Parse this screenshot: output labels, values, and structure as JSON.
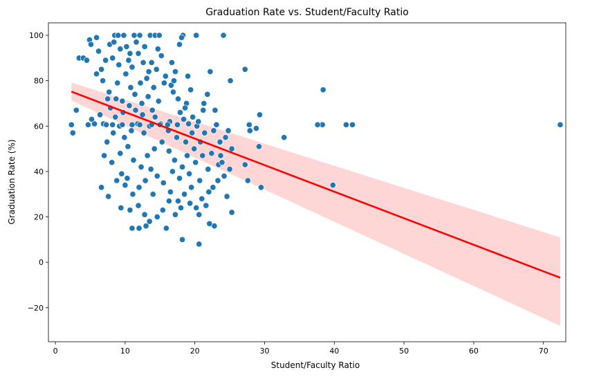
{
  "chart_data": {
    "type": "scatter",
    "title": "Graduation Rate vs. Student/Faculty Ratio",
    "xlabel": "Student/Faculty Ratio",
    "ylabel": "Graduation Rate (%)",
    "xlim": [
      -1,
      73.2
    ],
    "ylim": [
      -35,
      105.5
    ],
    "xticks": [
      0,
      10,
      20,
      30,
      40,
      50,
      60,
      70
    ],
    "yticks": [
      -20,
      0,
      20,
      40,
      60,
      80,
      100
    ],
    "grid": false,
    "point_color": "#1f77b4",
    "regression": {
      "color": "#ff0000",
      "ci_color": "#ffcccc",
      "x": [
        2.3,
        72.4
      ],
      "y": [
        75.2,
        -6.8
      ],
      "ci_lower": [
        71.2,
        -28
      ],
      "ci_upper": [
        79.2,
        11
      ]
    },
    "points": [
      [
        72.4,
        60.6
      ],
      [
        42.6,
        60.6
      ],
      [
        41.7,
        60.6
      ],
      [
        38.4,
        76
      ],
      [
        38.3,
        60.6
      ],
      [
        37.6,
        60.6
      ],
      [
        39.8,
        34
      ],
      [
        32.8,
        55
      ],
      [
        29.5,
        33
      ],
      [
        29.2,
        51
      ],
      [
        29.3,
        65
      ],
      [
        28.8,
        59
      ],
      [
        27.9,
        58
      ],
      [
        27.8,
        60.6
      ],
      [
        27.6,
        36
      ],
      [
        27.2,
        43
      ],
      [
        27.2,
        85
      ],
      [
        25.1,
        80
      ],
      [
        24.1,
        100
      ],
      [
        25.3,
        22
      ],
      [
        25.3,
        50
      ],
      [
        20.6,
        8
      ],
      [
        18.2,
        10
      ],
      [
        2.3,
        60.6
      ],
      [
        2.5,
        57
      ],
      [
        3,
        67
      ],
      [
        3.4,
        90
      ],
      [
        4,
        90
      ],
      [
        4.5,
        89
      ],
      [
        4.9,
        98
      ],
      [
        5.1,
        96
      ],
      [
        5.9,
        99
      ],
      [
        6.6,
        33
      ],
      [
        7.6,
        29
      ],
      [
        9.4,
        24
      ],
      [
        11,
        15
      ],
      [
        12,
        15
      ],
      [
        20.2,
        100
      ],
      [
        22.8,
        16
      ],
      [
        22.1,
        17
      ],
      [
        25,
        41
      ],
      [
        24.6,
        29
      ],
      [
        23.7,
        47
      ],
      [
        24.8,
        58
      ],
      [
        24.4,
        55
      ],
      [
        23.6,
        53
      ],
      [
        22.2,
        84
      ],
      [
        21.8,
        74
      ],
      [
        22.9,
        67
      ],
      [
        21.2,
        67
      ],
      [
        23.1,
        60.6
      ],
      [
        22.7,
        58
      ],
      [
        23.4,
        43
      ],
      [
        22,
        31
      ],
      [
        21,
        28
      ],
      [
        20.6,
        21
      ],
      [
        19,
        82
      ],
      [
        18.3,
        100
      ],
      [
        18.1,
        99
      ],
      [
        17.8,
        96
      ],
      [
        17.2,
        84
      ],
      [
        16.6,
        78
      ],
      [
        19.4,
        76
      ],
      [
        18.8,
        70
      ],
      [
        17.9,
        66
      ],
      [
        16.4,
        62
      ],
      [
        8.5,
        100
      ],
      [
        9,
        100
      ],
      [
        9.8,
        100
      ],
      [
        11.3,
        100
      ],
      [
        12.1,
        100
      ],
      [
        13.6,
        100
      ],
      [
        14.3,
        100
      ],
      [
        14.9,
        100
      ],
      [
        10.2,
        95
      ],
      [
        11.6,
        97
      ],
      [
        6.2,
        93
      ],
      [
        6.6,
        85
      ],
      [
        7.2,
        89
      ],
      [
        7.8,
        96
      ],
      [
        8.2,
        90
      ],
      [
        9.1,
        87
      ],
      [
        10.5,
        89
      ],
      [
        11.9,
        92
      ],
      [
        12.8,
        95
      ],
      [
        13.8,
        88
      ],
      [
        15.2,
        91
      ],
      [
        14.5,
        85
      ],
      [
        16.7,
        88
      ],
      [
        13.1,
        81
      ],
      [
        10.1,
        83
      ],
      [
        8.9,
        79
      ],
      [
        7.5,
        72
      ],
      [
        6.4,
        65
      ],
      [
        5.6,
        61
      ],
      [
        5.2,
        63
      ],
      [
        6.9,
        61
      ],
      [
        7.9,
        68
      ],
      [
        8.6,
        64
      ],
      [
        9.6,
        71
      ],
      [
        10.8,
        77
      ],
      [
        11.4,
        74
      ],
      [
        12.4,
        70
      ],
      [
        13.3,
        73
      ],
      [
        14.1,
        77
      ],
      [
        15.6,
        79
      ],
      [
        16.9,
        75
      ],
      [
        17.6,
        72
      ],
      [
        18.6,
        68
      ],
      [
        19.7,
        64
      ],
      [
        20.3,
        60
      ],
      [
        21.4,
        57
      ],
      [
        20.8,
        53
      ],
      [
        19.9,
        50
      ],
      [
        18.9,
        47
      ],
      [
        17.4,
        55
      ],
      [
        16.2,
        58
      ],
      [
        15.1,
        61
      ],
      [
        14.3,
        64
      ],
      [
        13.5,
        60
      ],
      [
        12.7,
        57
      ],
      [
        11.8,
        61
      ],
      [
        10.9,
        58
      ],
      [
        9.9,
        55
      ],
      [
        9.2,
        60
      ],
      [
        8.3,
        57
      ],
      [
        7.4,
        53
      ],
      [
        7,
        47
      ],
      [
        8.1,
        44
      ],
      [
        9.3,
        48
      ],
      [
        10.4,
        51
      ],
      [
        11.2,
        45
      ],
      [
        12.3,
        42
      ],
      [
        13.2,
        47
      ],
      [
        14.2,
        50
      ],
      [
        15.3,
        53
      ],
      [
        16.3,
        49
      ],
      [
        17.1,
        45
      ],
      [
        18.2,
        42
      ],
      [
        19.2,
        39
      ],
      [
        20.1,
        44
      ],
      [
        21.1,
        47
      ],
      [
        21.9,
        41
      ],
      [
        20.7,
        36
      ],
      [
        19.5,
        33
      ],
      [
        18.5,
        30
      ],
      [
        17.6,
        27
      ],
      [
        16.5,
        31
      ],
      [
        15.5,
        35
      ],
      [
        14.6,
        38
      ],
      [
        13.7,
        41
      ],
      [
        12.9,
        36
      ],
      [
        12,
        33
      ],
      [
        11.1,
        30
      ],
      [
        10.3,
        37
      ],
      [
        9.5,
        39
      ],
      [
        8.8,
        36
      ],
      [
        10,
        34
      ],
      [
        10.7,
        23
      ],
      [
        11.9,
        25
      ],
      [
        12.8,
        21
      ],
      [
        13.5,
        18
      ],
      [
        14.6,
        20
      ],
      [
        15.4,
        23
      ],
      [
        16.3,
        27
      ],
      [
        17.2,
        21
      ],
      [
        18,
        24
      ],
      [
        19.3,
        26
      ],
      [
        20.2,
        24
      ],
      [
        21.6,
        25
      ],
      [
        22.6,
        33
      ],
      [
        23.3,
        36
      ],
      [
        24.2,
        38
      ],
      [
        13,
        16
      ],
      [
        14,
        30
      ],
      [
        15.9,
        15
      ],
      [
        16.8,
        40
      ],
      [
        17.8,
        37
      ],
      [
        18.7,
        53
      ],
      [
        19.6,
        57
      ],
      [
        20.5,
        62
      ],
      [
        21.3,
        70
      ],
      [
        17,
        80
      ],
      [
        15.8,
        82
      ],
      [
        14.8,
        71
      ],
      [
        13.9,
        67
      ],
      [
        12.5,
        65
      ],
      [
        11.5,
        67
      ],
      [
        10.6,
        69
      ],
      [
        9.7,
        66
      ],
      [
        8.7,
        72
      ],
      [
        7.7,
        75
      ],
      [
        6.8,
        80
      ],
      [
        5.9,
        83
      ],
      [
        11,
        86
      ],
      [
        12.2,
        79
      ],
      [
        13.4,
        84
      ],
      [
        14.7,
        94
      ],
      [
        12.6,
        88
      ],
      [
        10.7,
        92
      ],
      [
        9.3,
        94
      ],
      [
        8.4,
        97
      ],
      [
        18.4,
        63
      ],
      [
        19.1,
        61
      ],
      [
        17.5,
        60.6
      ],
      [
        16.1,
        60.6
      ],
      [
        15,
        60.6
      ],
      [
        13.8,
        60.6
      ],
      [
        12.1,
        60.6
      ],
      [
        11,
        60.6
      ],
      [
        9.6,
        60.6
      ],
      [
        8.2,
        60.6
      ],
      [
        7.3,
        60.6
      ],
      [
        4.7,
        60.6
      ],
      [
        22.4,
        48
      ],
      [
        23.9,
        44
      ]
    ]
  }
}
